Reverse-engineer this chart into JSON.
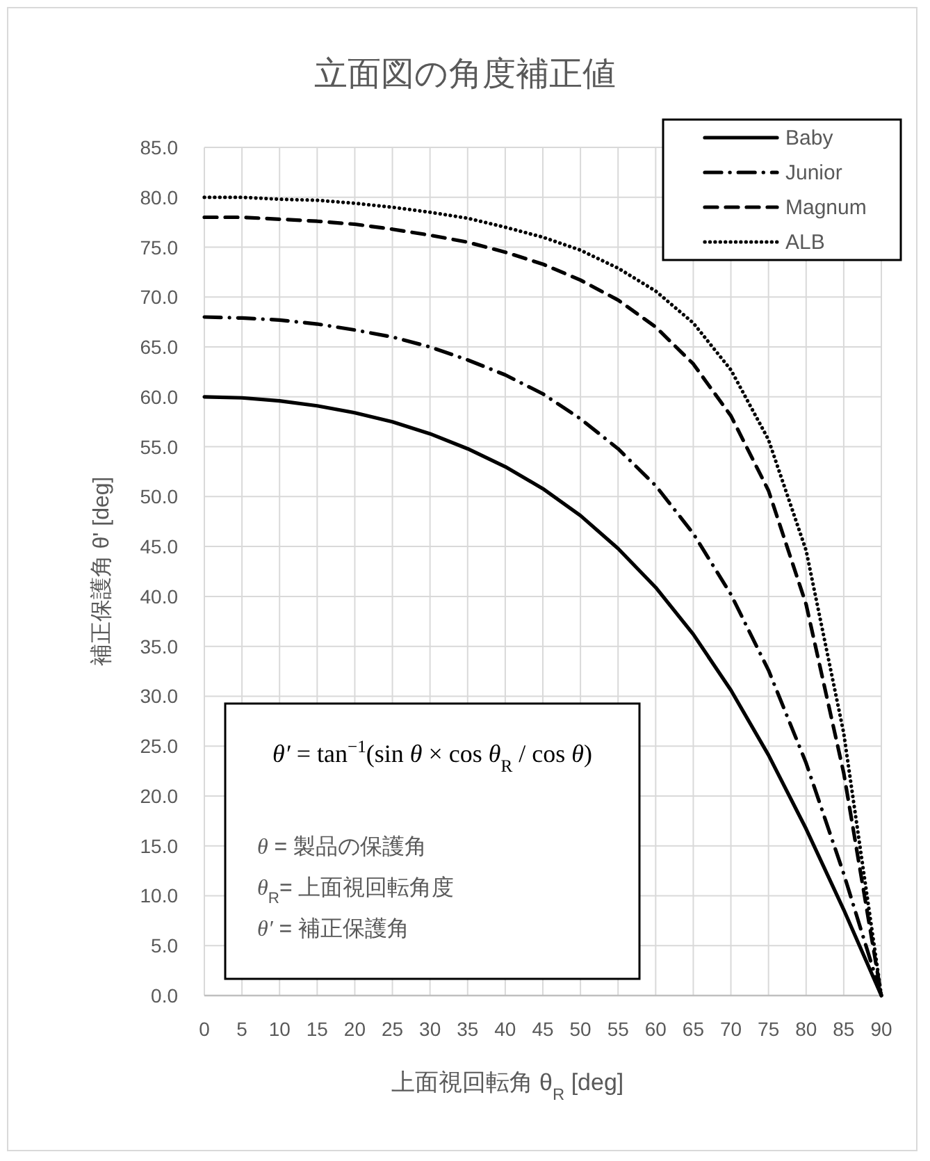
{
  "chart_data": {
    "type": "line",
    "title": "立面図の角度補正値",
    "xlabel": "上面視回転角 θ$_{R}$ [deg]",
    "ylabel": "補正保護角 θ' [deg]",
    "x": [
      0,
      5,
      10,
      15,
      20,
      25,
      30,
      35,
      40,
      45,
      50,
      55,
      60,
      65,
      70,
      75,
      80,
      85,
      90
    ],
    "xlim": [
      0,
      90
    ],
    "xticks": [
      0,
      5,
      10,
      15,
      20,
      25,
      30,
      35,
      40,
      45,
      50,
      55,
      60,
      65,
      70,
      75,
      80,
      85,
      90
    ],
    "ylim": [
      0,
      85
    ],
    "yticks": [
      {
        "value": 0,
        "label": "0.0"
      },
      {
        "value": 5,
        "label": "5.0"
      },
      {
        "value": 10,
        "label": "10.0"
      },
      {
        "value": 15,
        "label": "15.0"
      },
      {
        "value": 20,
        "label": "20.0"
      },
      {
        "value": 25,
        "label": "25.0"
      },
      {
        "value": 30,
        "label": "30.0"
      },
      {
        "value": 35,
        "label": "35.0"
      },
      {
        "value": 40,
        "label": "40.0"
      },
      {
        "value": 45,
        "label": "45.0"
      },
      {
        "value": 50,
        "label": "50.0"
      },
      {
        "value": 55,
        "label": "55.0"
      },
      {
        "value": 60,
        "label": "60.0"
      },
      {
        "value": 65,
        "label": "65.0"
      },
      {
        "value": 70,
        "label": "70.0"
      },
      {
        "value": 75,
        "label": "75.0"
      },
      {
        "value": 80,
        "label": "80.0"
      },
      {
        "value": 85,
        "label": "85.0"
      }
    ],
    "grid": true,
    "legend": "top right",
    "series": [
      {
        "name": "Baby",
        "color": "#000000",
        "line_style": "solid",
        "values": [
          60.0,
          59.9,
          59.6,
          59.1,
          58.4,
          57.5,
          56.3,
          54.8,
          53.0,
          50.8,
          48.1,
          44.8,
          40.9,
          36.2,
          30.6,
          24.1,
          16.7,
          8.6,
          0
        ]
      },
      {
        "name": "Junior",
        "color": "#000000",
        "line_style": "dashdot",
        "values": [
          68.0,
          67.9,
          67.7,
          67.3,
          66.7,
          66.0,
          65.0,
          63.7,
          62.2,
          60.3,
          57.8,
          54.8,
          51.1,
          46.3,
          40.2,
          32.6,
          23.3,
          12.2,
          0
        ]
      },
      {
        "name": "Magnum",
        "color": "#000000",
        "line_style": "dashed",
        "values": [
          78.0,
          78.0,
          77.8,
          77.6,
          77.3,
          76.8,
          76.2,
          75.5,
          74.5,
          73.3,
          71.7,
          69.7,
          67.0,
          63.3,
          58.1,
          50.6,
          39.2,
          22.3,
          0
        ]
      },
      {
        "name": "ALB",
        "color": "#000000",
        "line_style": "dotted",
        "values": [
          80.0,
          80.0,
          79.8,
          79.7,
          79.4,
          79.0,
          78.5,
          77.9,
          77.0,
          76.0,
          74.7,
          72.9,
          70.6,
          67.4,
          62.7,
          55.7,
          44.6,
          26.3,
          0
        ]
      }
    ],
    "annotations": [
      "θ′ = tan$^{−1}$(sin θ × cos θ$_{R}$ / cos θ)",
      "θ  = 製品の保護角",
      "θ$_{R}$= 上面視回転角度",
      "θ′ = 補正保護角"
    ]
  }
}
